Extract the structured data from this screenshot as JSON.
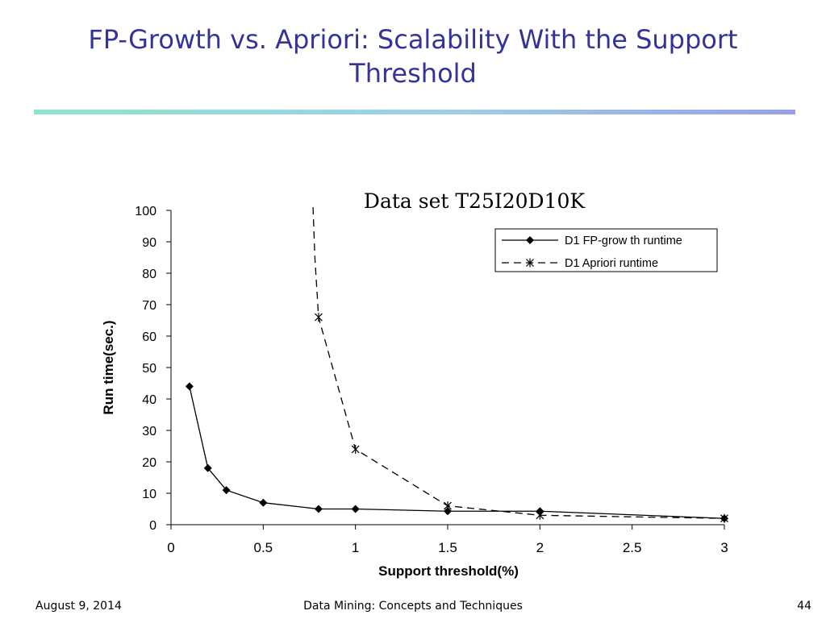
{
  "slide": {
    "title": "FP-Growth vs. Apriori: Scalability With the Support Threshold"
  },
  "footer": {
    "date": "August 9, 2014",
    "center": "Data Mining: Concepts and Techniques",
    "page": "44"
  },
  "chart_data": {
    "type": "line",
    "title": "Data set T25I20D10K",
    "xlabel": "Support threshold(%)",
    "ylabel": "Run time(sec.)",
    "xlim": [
      0,
      3
    ],
    "ylim": [
      0,
      100
    ],
    "xticks": [
      "0",
      "0.5",
      "1",
      "1.5",
      "2",
      "2.5",
      "3"
    ],
    "xtick_values": [
      0,
      0.5,
      1,
      1.5,
      2,
      2.5,
      3
    ],
    "yticks": [
      "0",
      "10",
      "20",
      "30",
      "40",
      "50",
      "60",
      "70",
      "80",
      "90",
      "100"
    ],
    "ytick_values": [
      0,
      10,
      20,
      30,
      40,
      50,
      60,
      70,
      80,
      90,
      100
    ],
    "grid": false,
    "legend_position": "top-right",
    "series": [
      {
        "name": "D1 FP-grow th runtime",
        "line_style": "solid",
        "marker": "diamond",
        "color": "#000000",
        "x": [
          0.1,
          0.2,
          0.3,
          0.5,
          0.8,
          1,
          1.5,
          2,
          3
        ],
        "y": [
          44,
          18,
          11,
          7,
          5,
          5,
          4.3,
          4.3,
          2
        ]
      },
      {
        "name": "D1 Apriori runtime",
        "line_style": "dashed",
        "marker": "star",
        "color": "#000000",
        "x": [
          0.77,
          0.78,
          0.8,
          1,
          1.5,
          2,
          3
        ],
        "y": [
          101,
          85,
          66,
          24,
          6,
          3,
          2
        ]
      }
    ]
  }
}
